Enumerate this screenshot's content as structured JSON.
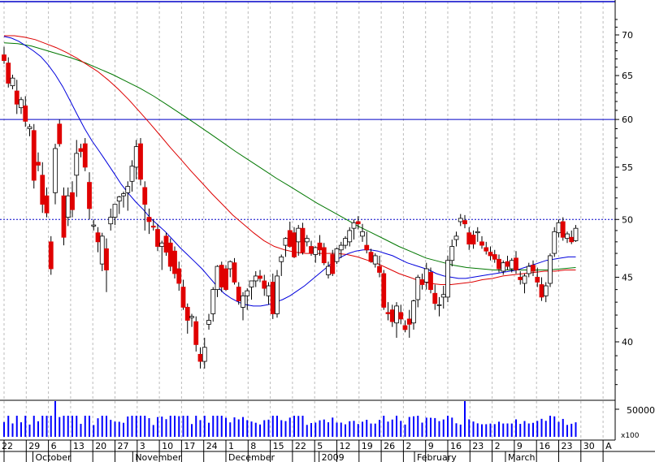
{
  "chart_data": {
    "type": "candlestick",
    "price_axis": {
      "ticks": [
        40,
        45,
        50,
        55,
        60,
        65,
        70
      ],
      "scale": "log"
    },
    "reference_lines": [
      {
        "value": 60,
        "style": "solid",
        "color": "#0000c8"
      },
      {
        "value": 50,
        "style": "dashed",
        "color": "#0000c8"
      }
    ],
    "volume_axis": {
      "tick": "50000",
      "multiplier": "x100"
    },
    "x_axis": {
      "day_labels": [
        "22",
        "29",
        "6",
        "13",
        "20",
        "27",
        "3",
        "10",
        "17",
        "24",
        "1",
        "8",
        "15",
        "22",
        "5",
        "12",
        "19",
        "26",
        "2",
        "9",
        "16",
        "23",
        "2",
        "9",
        "16",
        "23",
        "30",
        "A"
      ],
      "month_labels": [
        "October",
        "November",
        "December",
        "2009",
        "February",
        "March"
      ]
    },
    "colors": {
      "up": "#ffffff",
      "down": "#e00000",
      "ma_short": "#0000dd",
      "ma_mid": "#dd0000",
      "ma_long": "#007700",
      "ref_line": "#0000c8",
      "volume": "#0000ff"
    },
    "candles": [
      [
        67.5,
        68.5,
        66.4,
        66.8
      ],
      [
        66.5,
        67.2,
        63.6,
        64.1
      ],
      [
        63.8,
        65.1,
        63.4,
        64.7
      ],
      [
        63.2,
        64.5,
        60.6,
        61.7
      ],
      [
        61.3,
        62.5,
        60.6,
        62.2
      ],
      [
        61.5,
        62.6,
        59.2,
        59.8
      ],
      [
        59.0,
        59.5,
        58.2,
        59.2
      ],
      [
        58.8,
        59.5,
        52.9,
        53.7
      ],
      [
        55.5,
        56.5,
        54.6,
        55.2
      ],
      [
        54.2,
        55.5,
        50.6,
        51.4
      ],
      [
        52.2,
        53.0,
        50.2,
        50.6
      ],
      [
        48.0,
        48.5,
        45.2,
        45.7
      ],
      [
        52.5,
        57.4,
        51.4,
        56.9
      ],
      [
        59.5,
        60.0,
        57.1,
        57.4
      ],
      [
        52.2,
        53.0,
        47.7,
        48.4
      ],
      [
        50.2,
        53.0,
        49.4,
        52.2
      ],
      [
        52.5,
        53.6,
        50.2,
        50.9
      ],
      [
        54.2,
        57.8,
        52.1,
        56.4
      ],
      [
        56.9,
        57.4,
        56.0,
        56.6
      ],
      [
        57.4,
        58.0,
        54.6,
        55.0
      ],
      [
        53.5,
        54.5,
        50.0,
        51.0
      ],
      [
        49.4,
        50.0,
        49.0,
        49.5
      ],
      [
        48.8,
        49.3,
        47.1,
        48.0
      ],
      [
        46.1,
        48.8,
        45.5,
        48.5
      ],
      [
        47.4,
        48.3,
        43.8,
        45.6
      ],
      [
        49.6,
        51.0,
        49.0,
        50.2
      ],
      [
        50.2,
        51.2,
        49.5,
        51.4
      ],
      [
        51.7,
        52.2,
        50.5,
        52.1
      ],
      [
        52.2,
        52.6,
        51.1,
        52.4
      ],
      [
        52.5,
        53.6,
        50.8,
        53.1
      ],
      [
        53.6,
        55.7,
        52.6,
        55.1
      ],
      [
        55.0,
        57.8,
        53.8,
        57.1
      ],
      [
        57.4,
        58.0,
        53.2,
        53.8
      ],
      [
        53.0,
        53.6,
        49.0,
        51.4
      ],
      [
        50.2,
        51.0,
        48.7,
        49.8
      ],
      [
        49.4,
        50.0,
        49.0,
        49.3
      ],
      [
        49.1,
        49.6,
        47.2,
        47.6
      ],
      [
        47.6,
        48.1,
        45.6,
        47.9
      ],
      [
        48.5,
        48.8,
        46.8,
        47.1
      ],
      [
        47.9,
        48.3,
        45.5,
        45.9
      ],
      [
        47.2,
        47.6,
        44.9,
        45.3
      ],
      [
        45.7,
        46.3,
        43.9,
        44.5
      ],
      [
        44.2,
        44.8,
        42.4,
        42.6
      ],
      [
        42.6,
        42.9,
        40.6,
        41.6
      ],
      [
        41.8,
        42.1,
        41.1,
        41.9
      ],
      [
        41.5,
        41.9,
        39.3,
        39.8
      ],
      [
        39.1,
        39.6,
        38.1,
        38.6
      ],
      [
        38.6,
        40.3,
        38.1,
        39.6
      ],
      [
        41.3,
        42.1,
        40.9,
        41.6
      ],
      [
        42.1,
        44.2,
        41.5,
        44.0
      ],
      [
        44.0,
        46.0,
        43.4,
        45.9
      ],
      [
        46.0,
        46.3,
        43.8,
        44.2
      ],
      [
        45.7,
        46.0,
        43.9,
        44.0
      ],
      [
        45.7,
        46.4,
        45.0,
        46.3
      ],
      [
        46.2,
        46.6,
        44.4,
        44.6
      ],
      [
        44.2,
        44.6,
        42.8,
        43.1
      ],
      [
        42.6,
        43.8,
        41.6,
        43.5
      ],
      [
        43.5,
        44.1,
        42.4,
        43.9
      ],
      [
        44.2,
        44.7,
        43.2,
        44.7
      ],
      [
        44.7,
        45.5,
        44.2,
        45.1
      ],
      [
        45.1,
        45.6,
        44.6,
        44.9
      ],
      [
        44.7,
        45.2,
        43.5,
        44.1
      ],
      [
        43.5,
        44.6,
        42.8,
        44.3
      ],
      [
        44.6,
        45.3,
        41.7,
        42.1
      ],
      [
        42.1,
        45.6,
        41.8,
        45.1
      ],
      [
        46.3,
        46.9,
        45.1,
        46.7
      ],
      [
        47.7,
        48.4,
        46.7,
        48.3
      ],
      [
        49.0,
        49.8,
        47.5,
        47.6
      ],
      [
        48.8,
        49.3,
        46.6,
        46.7
      ],
      [
        48.0,
        49.5,
        46.8,
        49.2
      ],
      [
        49.2,
        49.7,
        46.9,
        47.1
      ],
      [
        48.0,
        48.6,
        47.6,
        48.3
      ],
      [
        47.6,
        48.1,
        46.8,
        47.0
      ],
      [
        46.9,
        47.6,
        46.2,
        47.5
      ],
      [
        47.9,
        48.6,
        46.8,
        47.3
      ],
      [
        47.5,
        47.9,
        46.0,
        46.2
      ],
      [
        45.2,
        46.3,
        44.9,
        45.9
      ],
      [
        46.9,
        47.3,
        45.1,
        45.3
      ],
      [
        46.3,
        47.5,
        46.1,
        47.4
      ],
      [
        47.3,
        48.0,
        46.6,
        47.7
      ],
      [
        47.7,
        48.5,
        47.4,
        48.3
      ],
      [
        48.0,
        49.3,
        47.6,
        49.0
      ],
      [
        49.2,
        50.0,
        48.2,
        49.7
      ],
      [
        49.8,
        50.3,
        49.1,
        49.6
      ],
      [
        48.5,
        49.6,
        48.0,
        48.9
      ],
      [
        47.7,
        48.9,
        47.0,
        47.3
      ],
      [
        47.1,
        47.4,
        46.2,
        46.3
      ],
      [
        46.1,
        47.0,
        45.8,
        46.8
      ],
      [
        45.9,
        46.8,
        45.0,
        45.4
      ],
      [
        45.3,
        45.6,
        42.4,
        42.6
      ],
      [
        42.2,
        43.0,
        41.6,
        42.1
      ],
      [
        42.4,
        42.8,
        41.1,
        41.5
      ],
      [
        41.4,
        43.0,
        40.3,
        42.7
      ],
      [
        42.2,
        42.8,
        41.3,
        41.7
      ],
      [
        41.2,
        41.6,
        40.7,
        40.9
      ],
      [
        41.7,
        42.4,
        40.3,
        41.3
      ],
      [
        41.4,
        43.2,
        40.9,
        43.1
      ],
      [
        43.2,
        45.2,
        42.6,
        45.0
      ],
      [
        44.8,
        45.3,
        44.0,
        44.4
      ],
      [
        44.6,
        46.2,
        44.0,
        45.7
      ],
      [
        45.4,
        45.8,
        43.7,
        44.0
      ],
      [
        43.7,
        44.4,
        42.4,
        42.9
      ],
      [
        42.8,
        43.4,
        41.9,
        42.8
      ],
      [
        43.4,
        44.3,
        42.5,
        43.6
      ],
      [
        43.4,
        46.8,
        43.0,
        46.4
      ],
      [
        46.4,
        48.2,
        45.9,
        47.6
      ],
      [
        48.2,
        48.9,
        47.6,
        48.5
      ],
      [
        49.8,
        50.5,
        49.4,
        50.1
      ],
      [
        49.9,
        50.4,
        49.2,
        49.6
      ],
      [
        48.8,
        49.3,
        47.3,
        47.8
      ],
      [
        48.6,
        49.0,
        47.4,
        47.8
      ],
      [
        48.8,
        49.3,
        48.0,
        48.9
      ],
      [
        48.0,
        48.5,
        47.4,
        47.7
      ],
      [
        47.5,
        48.0,
        46.9,
        47.2
      ],
      [
        47.1,
        47.6,
        46.4,
        46.8
      ],
      [
        46.9,
        47.3,
        46.2,
        46.5
      ],
      [
        46.5,
        46.9,
        45.4,
        45.7
      ],
      [
        45.5,
        46.4,
        45.2,
        46.2
      ],
      [
        46.3,
        46.8,
        45.6,
        45.9
      ],
      [
        45.7,
        46.6,
        45.4,
        46.4
      ],
      [
        46.6,
        47.2,
        45.3,
        45.6
      ],
      [
        45.0,
        45.5,
        44.4,
        44.8
      ],
      [
        44.5,
        45.3,
        43.7,
        45.1
      ],
      [
        45.3,
        46.2,
        45.0,
        45.9
      ],
      [
        46.0,
        46.4,
        45.1,
        45.5
      ],
      [
        45.0,
        45.8,
        44.2,
        44.6
      ],
      [
        44.4,
        45.0,
        43.1,
        43.4
      ],
      [
        43.5,
        44.6,
        43.0,
        44.3
      ],
      [
        44.5,
        47.0,
        44.2,
        46.8
      ],
      [
        47.0,
        49.3,
        46.7,
        48.9
      ],
      [
        48.8,
        50.0,
        48.4,
        49.7
      ],
      [
        49.8,
        50.2,
        48.1,
        48.4
      ],
      [
        48.3,
        48.9,
        47.9,
        48.7
      ],
      [
        48.4,
        49.0,
        47.8,
        48.0
      ],
      [
        48.1,
        49.5,
        48.0,
        49.2
      ]
    ],
    "ma_short": [
      69.8,
      69.6,
      69.2,
      68.6,
      68.0,
      67.3,
      66.3,
      65.1,
      63.7,
      62.1,
      60.5,
      59.0,
      57.7,
      56.6,
      55.5,
      54.4,
      53.3,
      52.4,
      51.6,
      50.9,
      50.1,
      49.5,
      48.9,
      48.2,
      47.5,
      46.9,
      46.3,
      45.7,
      45.0,
      44.3,
      43.7,
      43.3,
      43.0,
      42.8,
      42.7,
      42.7,
      42.8,
      43.0,
      43.2,
      43.5,
      43.9,
      44.3,
      44.8,
      45.3,
      45.8,
      46.3,
      46.7,
      47.0,
      47.2,
      47.3,
      47.3,
      47.2,
      47.0,
      46.8,
      46.5,
      46.2,
      46.0,
      45.8,
      45.6,
      45.3,
      45.1,
      45.0,
      44.9,
      44.9,
      45.0,
      45.1,
      45.2,
      45.3,
      45.4,
      45.5,
      45.6,
      45.8,
      46.0,
      46.2,
      46.4,
      46.5,
      46.6,
      46.7,
      46.7
    ],
    "ma_mid": [
      69.9,
      69.9,
      69.7,
      69.4,
      68.9,
      68.4,
      67.8,
      67.1,
      66.3,
      65.5,
      64.5,
      63.4,
      62.2,
      60.9,
      59.6,
      58.3,
      57.0,
      55.8,
      54.6,
      53.5,
      52.4,
      51.4,
      50.4,
      49.6,
      48.8,
      48.1,
      47.6,
      47.3,
      47.1,
      47.0,
      47.0,
      47.0,
      47.0,
      46.9,
      46.7,
      46.4,
      46.1,
      45.7,
      45.3,
      45.0,
      44.7,
      44.5,
      44.4,
      44.4,
      44.5,
      44.6,
      44.8,
      44.9,
      45.1,
      45.2,
      45.3,
      45.4,
      45.5,
      45.5,
      45.6,
      45.6
    ],
    "ma_long": [
      69.0,
      68.9,
      68.6,
      68.1,
      67.6,
      67.1,
      66.5,
      65.8,
      65.1,
      64.3,
      63.5,
      62.6,
      61.6,
      60.6,
      59.6,
      58.6,
      57.6,
      56.6,
      55.7,
      54.8,
      53.9,
      53.1,
      52.3,
      51.5,
      50.8,
      50.1,
      49.4,
      48.8,
      48.2,
      47.6,
      47.1,
      46.6,
      46.3,
      46.0,
      45.8,
      45.7,
      45.6,
      45.6,
      45.6,
      45.6,
      45.6,
      45.7,
      45.8
    ]
  }
}
